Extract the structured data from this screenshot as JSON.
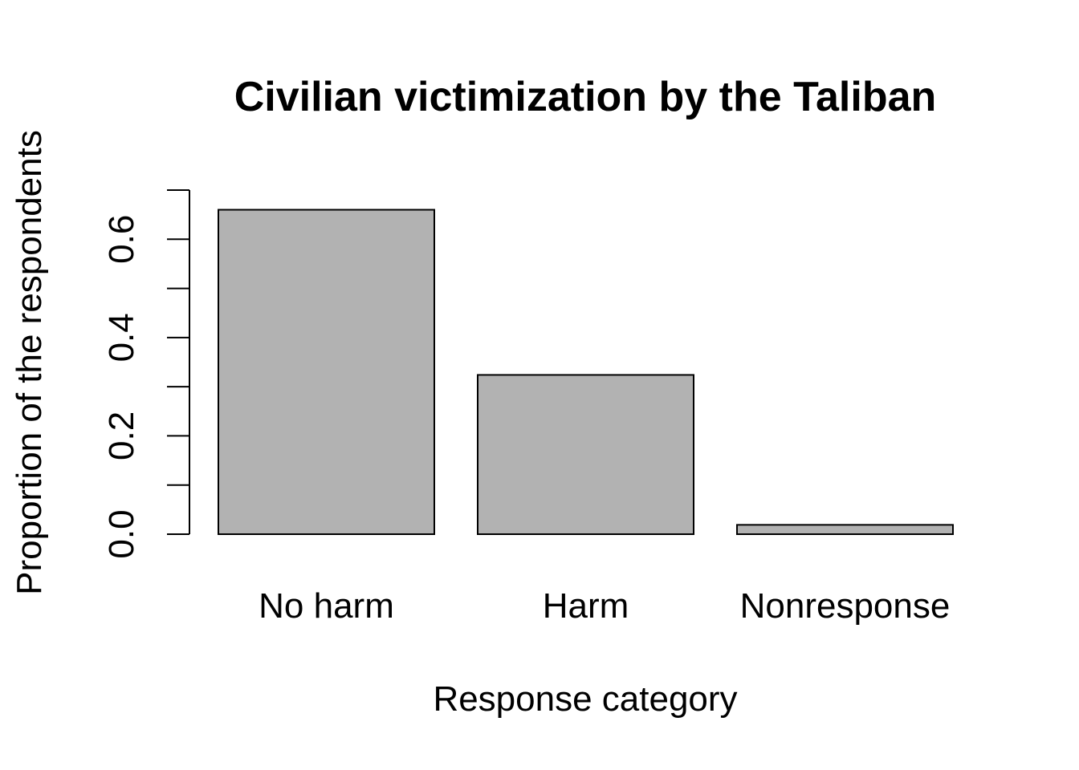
{
  "chart_data": {
    "type": "bar",
    "title": "Civilian victimization by the Taliban",
    "xlabel": "Response category",
    "ylabel": "Proportion of the respondents",
    "categories": [
      "No harm",
      "Harm",
      "Nonresponse"
    ],
    "values": [
      0.66,
      0.324,
      0.019
    ],
    "ylim": [
      0,
      0.7
    ],
    "y_ticks": [
      0.0,
      0.1,
      0.2,
      0.3,
      0.4,
      0.5,
      0.6,
      0.7
    ],
    "y_tick_labels": [
      "0.0",
      "",
      "0.2",
      "",
      "0.4",
      "",
      "0.6",
      ""
    ],
    "bar_color": "#b2b2b2",
    "grid": false,
    "legend": "none"
  }
}
